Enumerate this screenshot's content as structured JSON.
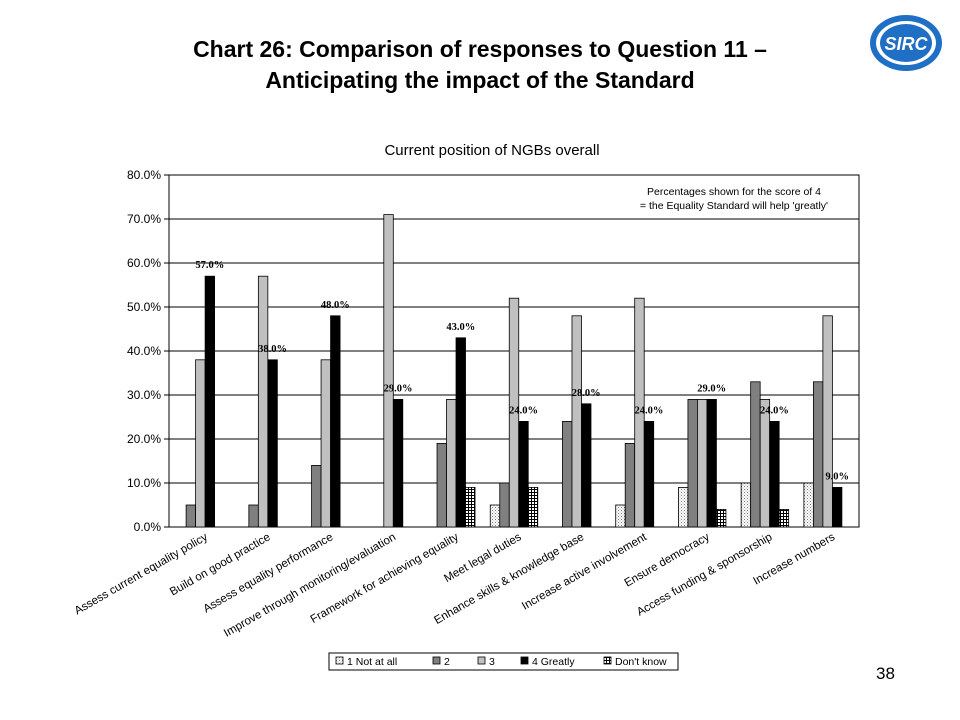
{
  "slide": {
    "title_line1": "Chart 26: Comparison of responses to Question 11 –",
    "title_line2": "Anticipating the impact of the Standard",
    "page_number": "38",
    "logo": "sirc-logo",
    "logo_text": "SIRC"
  },
  "chart_data": {
    "type": "bar",
    "title": "Current position of NGBs overall",
    "annotation": [
      "Percentages shown for the score of 4",
      "= the Equality Standard will help 'greatly'"
    ],
    "categories": [
      "Assess current equality policy",
      "Build on good practice",
      "Assess equality performance",
      "Improve through monitoring/evaluation",
      "Framework for achieving equality",
      "Meet legal duties",
      "Enhance skills & knowledge base",
      "Increase active involvement",
      "Ensure democracy",
      "Access funding & sponsorship",
      "Increase numbers"
    ],
    "series": [
      {
        "name": "1 Not at all",
        "values": [
          0,
          0,
          0,
          0,
          0,
          5,
          0,
          5,
          9,
          10,
          10
        ],
        "color": "#ffffff",
        "pattern": "dots"
      },
      {
        "name": "2",
        "values": [
          5,
          5,
          14,
          0,
          19,
          10,
          24,
          19,
          29,
          33,
          33
        ],
        "color": "#808080",
        "pattern": "solid"
      },
      {
        "name": "3",
        "values": [
          38,
          57,
          38,
          71,
          29,
          52,
          48,
          52,
          29,
          29,
          48
        ],
        "color": "#c0c0c0",
        "pattern": "solid"
      },
      {
        "name": "4 Greatly",
        "values": [
          57,
          38,
          48,
          29,
          43,
          24,
          28,
          24,
          29,
          24,
          9
        ],
        "color": "#000000",
        "pattern": "solid"
      },
      {
        "name": "Don't know",
        "values": [
          0,
          0,
          0,
          0,
          9,
          9,
          0,
          0,
          4,
          4,
          0
        ],
        "color": "#ffffff",
        "pattern": "grid"
      }
    ],
    "data_labels": [
      "57.0%",
      "38.0%",
      "48.0%",
      "29.0%",
      "43.0%",
      "24.0%",
      "28.0%",
      "24.0%",
      "29.0%",
      "24.0%",
      "9.0%"
    ],
    "ylim": [
      0,
      80
    ],
    "yticks": [
      "0.0%",
      "10.0%",
      "20.0%",
      "30.0%",
      "40.0%",
      "50.0%",
      "60.0%",
      "70.0%",
      "80.0%"
    ],
    "xlabel": "",
    "ylabel": "",
    "grid": true,
    "legend": "bottom"
  }
}
